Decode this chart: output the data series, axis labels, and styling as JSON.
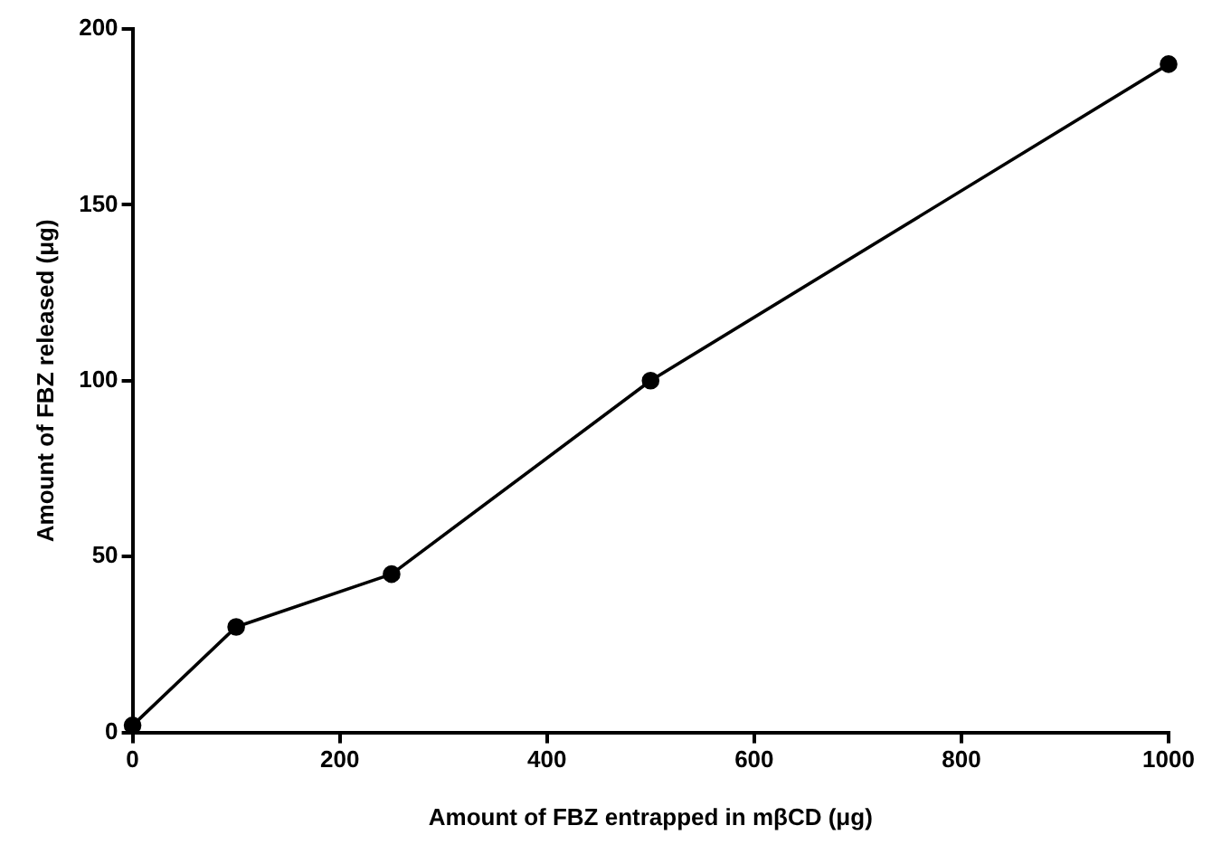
{
  "chart_data": {
    "type": "line",
    "xlabel": "Amount of FBZ entrapped in mβCD (μg)",
    "ylabel": "Amount of FBZ released (μg)",
    "x": [
      0,
      100,
      250,
      500,
      1000
    ],
    "series": [
      {
        "color": "#000000",
        "values": [
          2,
          30,
          45,
          100,
          190
        ]
      }
    ],
    "xlim": [
      0,
      1000
    ],
    "xticks": [
      0,
      200,
      400,
      600,
      800,
      1000
    ],
    "ylim": [
      0,
      200
    ],
    "yticks": [
      0,
      50,
      100,
      150,
      200
    ],
    "grid": false,
    "legend": false,
    "marker": "circle",
    "line_style": "solid"
  }
}
